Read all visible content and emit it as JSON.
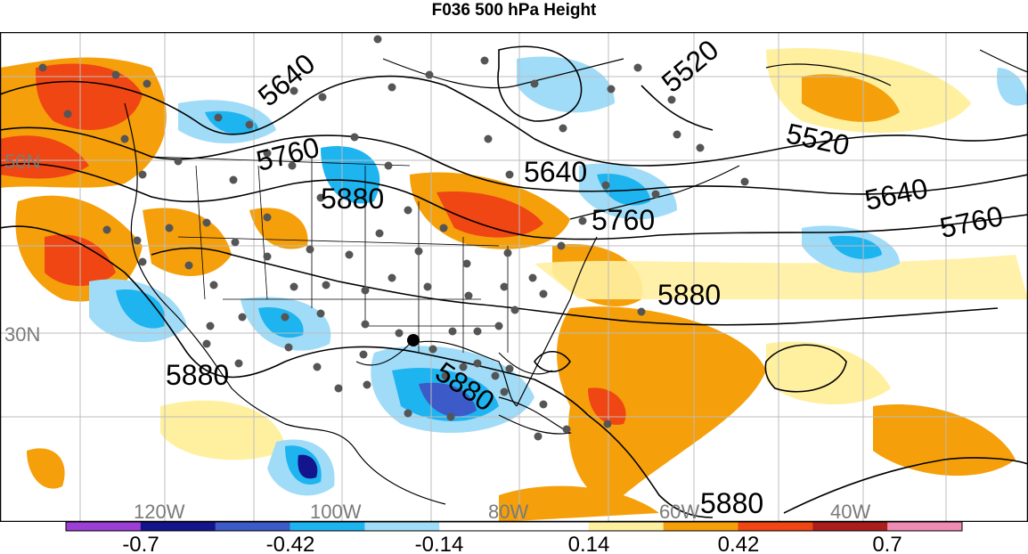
{
  "title": "F036 500 hPa Height",
  "map": {
    "lat_labels": [
      "50N",
      "30N"
    ],
    "lon_labels": [
      "120W",
      "100W",
      "80W",
      "60W",
      "40W"
    ],
    "contour_labels": [
      "5640",
      "5520",
      "5760",
      "5880",
      "5640",
      "5520",
      "5640",
      "5760",
      "5760",
      "5880",
      "5880",
      "5880",
      "5880"
    ]
  },
  "colorbar": {
    "tick_labels": [
      "-0.7",
      "-0.42",
      "-0.14",
      "0.14",
      "0.42",
      "0.7"
    ],
    "colors": [
      "#9c3fd4",
      "#14148c",
      "#3c5ac8",
      "#1eb4f0",
      "#a0dcf8",
      "#ffffff",
      "#ffffff",
      "#fff0a0",
      "#f5a00a",
      "#f04614",
      "#aa1e1e",
      "#f08cb4"
    ]
  }
}
